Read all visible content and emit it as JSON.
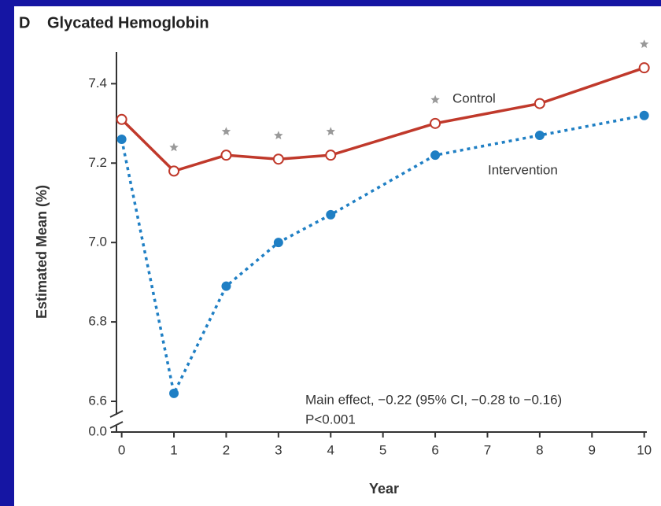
{
  "chart_data": {
    "type": "line",
    "panel_letter": "D",
    "title": "Glycated Hemoglobin",
    "xlabel": "Year",
    "ylabel": "Estimated Mean (%)",
    "x": [
      0,
      1,
      2,
      3,
      4,
      6,
      8,
      10
    ],
    "series": [
      {
        "name": "Control",
        "color": "#c0392b",
        "marker": "open",
        "dash": false,
        "values": [
          7.31,
          7.18,
          7.22,
          7.21,
          7.22,
          7.3,
          7.35,
          7.44
        ]
      },
      {
        "name": "Intervention",
        "color": "#1f7fc4",
        "marker": "filled",
        "dash": true,
        "values": [
          7.26,
          6.62,
          6.89,
          7.0,
          7.07,
          7.22,
          7.27,
          7.32
        ]
      }
    ],
    "significance_x": [
      1,
      2,
      3,
      4,
      6,
      10
    ],
    "xlim": [
      -0.1,
      10.05
    ],
    "xticks": [
      0,
      1,
      2,
      3,
      4,
      5,
      6,
      7,
      8,
      9,
      10
    ],
    "ylim": [
      0,
      7.48
    ],
    "ybreak": [
      0,
      6.6
    ],
    "yticks": [
      {
        "value": 0,
        "label": "0.0"
      },
      6.6,
      6.8,
      {
        "value": 7,
        "label": "7.0"
      },
      7.2,
      7.4
    ],
    "annotation": [
      "Main effect, −0.22 (95% CI, −0.28 to −0.16)",
      "P<0.001"
    ]
  }
}
